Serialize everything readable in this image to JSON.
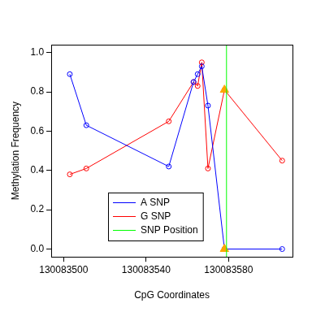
{
  "chart_data": {
    "type": "line",
    "x_label": "CpG Coordinates",
    "y_label": "Methylation Frequency",
    "xlim": [
      130083494,
      130083611
    ],
    "xticks": [
      130083500,
      130083540,
      130083580
    ],
    "ylim": [
      -0.04,
      1.04
    ],
    "yticks": [
      {
        "value": 0,
        "label": "0.0"
      },
      0.2,
      0.4,
      0.6,
      0.8,
      {
        "value": 1,
        "label": "1.0"
      }
    ],
    "grid": false,
    "legend": "bottom",
    "series": [
      {
        "name": "A SNP",
        "color": "#0000ff",
        "marker": "circle",
        "line_style": "solid",
        "x": [
          130083503,
          130083511,
          130083551,
          130083563,
          130083565,
          130083567,
          130083570,
          130083578,
          130083606
        ],
        "values": [
          0.89,
          0.63,
          0.42,
          0.85,
          0.89,
          0.93,
          0.73,
          0,
          0
        ]
      },
      {
        "name": "G SNP",
        "color": "#ff0000",
        "marker": "circle",
        "line_style": "solid",
        "x": [
          130083503,
          130083511,
          130083551,
          130083563,
          130083565,
          130083567,
          130083570,
          130083578,
          130083606
        ],
        "values": [
          0.38,
          0.41,
          0.65,
          0.85,
          0.83,
          0.95,
          0.41,
          0.81,
          0.45
        ]
      },
      {
        "name": "SNP Position",
        "color": "#00ff00",
        "type": "vline",
        "line_style": "solid",
        "x": [
          130083579
        ]
      },
      {
        "color": "#ffa500",
        "marker": "triangle",
        "line_style": "none",
        "x": [
          130083578,
          130083578
        ],
        "values": [
          0.81,
          0
        ]
      }
    ]
  }
}
